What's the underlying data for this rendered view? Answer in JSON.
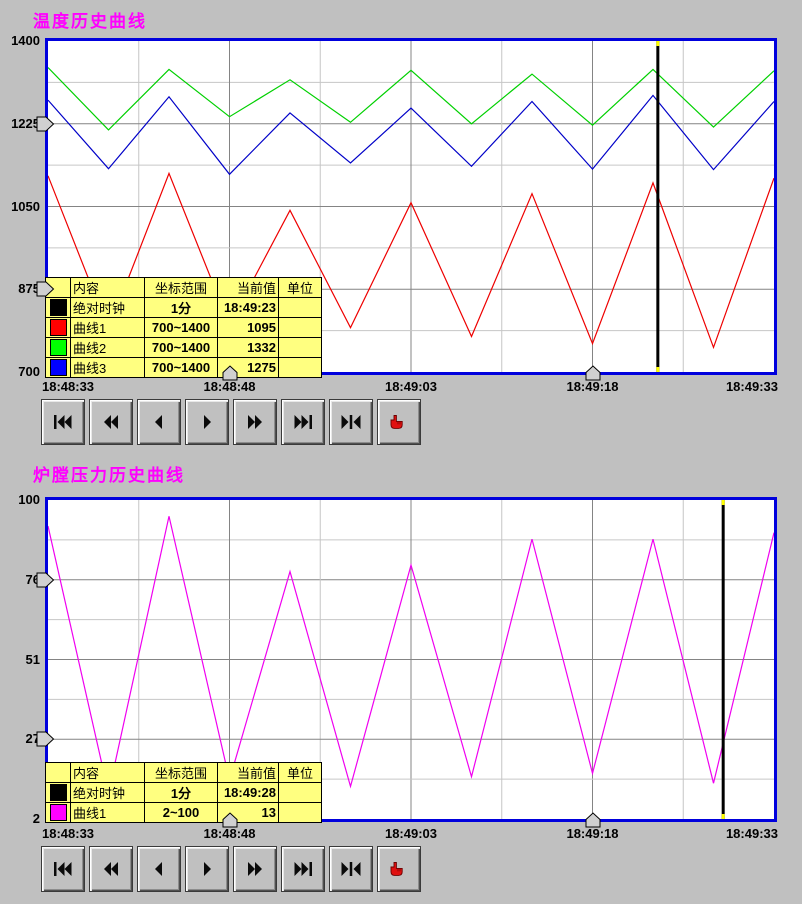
{
  "colors": {
    "background": "#c0c0c0",
    "plot_border": "#0000dd",
    "grid_major": "#848484",
    "grid_minor": "#c6c6c6",
    "legend_background": "#ffff80",
    "title_text": "#ff00ff",
    "cursor_line": "#000000",
    "cursor_end_tick": "#ffff00",
    "marker_fill": "#d0d0d0"
  },
  "transport_buttons": [
    {
      "name": "skip-to-start-button",
      "icon": "skip-to-start-icon"
    },
    {
      "name": "rewind-button",
      "icon": "rewind-icon"
    },
    {
      "name": "step-back-button",
      "icon": "step-back-icon"
    },
    {
      "name": "play-forward-button",
      "icon": "play-forward-icon"
    },
    {
      "name": "fast-forward-button",
      "icon": "fast-forward-icon"
    },
    {
      "name": "skip-to-end-button",
      "icon": "skip-to-end-icon"
    },
    {
      "name": "seek-to-cursor-button",
      "icon": "seek-to-cursor-icon"
    },
    {
      "name": "hand-select-button",
      "icon": "hand-pointer-icon"
    }
  ],
  "panels": [
    {
      "title": "温度历史曲线",
      "y_tick_labels": [
        "1400",
        "1225",
        "1050",
        "875",
        "700"
      ],
      "x_tick_labels": [
        "18:48:33",
        "18:48:48",
        "18:49:03",
        "18:49:18",
        "18:49:33"
      ],
      "legend": {
        "headers": [
          "内容",
          "坐标范围",
          "当前值",
          "单位"
        ],
        "rows": [
          {
            "swatch": "#000000",
            "content": "绝对时钟",
            "range": "1分",
            "value": "18:49:23",
            "unit": ""
          },
          {
            "swatch": "#ff0000",
            "content": "曲线1",
            "range": "700~1400",
            "value": "1095",
            "unit": ""
          },
          {
            "swatch": "#00ff00",
            "content": "曲线2",
            "range": "700~1400",
            "value": "1332",
            "unit": ""
          },
          {
            "swatch": "#0000ff",
            "content": "曲线3",
            "range": "700~1400",
            "value": "1275",
            "unit": ""
          }
        ]
      },
      "chart_data": {
        "type": "line",
        "title": "温度历史曲线",
        "x_unit": "seconds after 18:48:33",
        "xlim": [
          0,
          60
        ],
        "ylim": [
          700,
          1400
        ],
        "y_ticks": [
          1400,
          1225,
          1050,
          875,
          700
        ],
        "x_ticks_s": [
          0,
          15,
          30,
          45,
          60
        ],
        "grid": "major and minor gridlines on both axes",
        "legend_position": "yellow table overlay, bottom-left",
        "cursor_time_s": 50.4,
        "series": [
          {
            "name": "曲线1",
            "color": "#ee0000",
            "points": [
              [
                0,
                1115
              ],
              [
                5,
                790
              ],
              [
                10,
                1120
              ],
              [
                15,
                800
              ],
              [
                20,
                1042
              ],
              [
                25,
                794
              ],
              [
                30,
                1058
              ],
              [
                35,
                775
              ],
              [
                40,
                1077
              ],
              [
                45,
                760
              ],
              [
                50,
                1100
              ],
              [
                55,
                752
              ],
              [
                60,
                1110
              ]
            ]
          },
          {
            "name": "曲线2",
            "color": "#00d000",
            "points": [
              [
                0,
                1344
              ],
              [
                5,
                1212
              ],
              [
                10,
                1340
              ],
              [
                15,
                1240
              ],
              [
                20,
                1318
              ],
              [
                25,
                1228
              ],
              [
                30,
                1338
              ],
              [
                35,
                1225
              ],
              [
                40,
                1330
              ],
              [
                45,
                1222
              ],
              [
                50,
                1340
              ],
              [
                55,
                1218
              ],
              [
                60,
                1337
              ]
            ]
          },
          {
            "name": "曲线3",
            "color": "#0000c8",
            "points": [
              [
                0,
                1275
              ],
              [
                5,
                1130
              ],
              [
                10,
                1282
              ],
              [
                15,
                1118
              ],
              [
                20,
                1248
              ],
              [
                25,
                1142
              ],
              [
                30,
                1258
              ],
              [
                35,
                1135
              ],
              [
                40,
                1272
              ],
              [
                45,
                1129
              ],
              [
                50,
                1285
              ],
              [
                55,
                1128
              ],
              [
                60,
                1272
              ]
            ]
          }
        ]
      }
    },
    {
      "title": "炉膛压力历史曲线",
      "y_tick_labels": [
        "100",
        "76",
        "51",
        "27",
        "2"
      ],
      "x_tick_labels": [
        "18:48:33",
        "18:48:48",
        "18:49:03",
        "18:49:18",
        "18:49:33"
      ],
      "legend": {
        "headers": [
          "内容",
          "坐标范围",
          "当前值",
          "单位"
        ],
        "rows": [
          {
            "swatch": "#000000",
            "content": "绝对时钟",
            "range": "1分",
            "value": "18:49:28",
            "unit": ""
          },
          {
            "swatch": "#ff00ff",
            "content": "曲线1",
            "range": "2~100",
            "value": "13",
            "unit": ""
          }
        ]
      },
      "chart_data": {
        "type": "line",
        "title": "炉膛压力历史曲线",
        "x_unit": "seconds after 18:48:33",
        "xlim": [
          0,
          60
        ],
        "ylim": [
          2,
          100
        ],
        "y_ticks": [
          100,
          76,
          51,
          27,
          2
        ],
        "x_ticks_s": [
          0,
          15,
          30,
          45,
          60
        ],
        "grid": "major and minor gridlines on both axes",
        "legend_position": "yellow table overlay, bottom-left",
        "cursor_time_s": 55.8,
        "series": [
          {
            "name": "曲线1",
            "color": "#f000f0",
            "points": [
              [
                0,
                92
              ],
              [
                5,
                10
              ],
              [
                10,
                95
              ],
              [
                15,
                14
              ],
              [
                20,
                78
              ],
              [
                25,
                12
              ],
              [
                30,
                80
              ],
              [
                35,
                15
              ],
              [
                40,
                88
              ],
              [
                45,
                16
              ],
              [
                50,
                88
              ],
              [
                55,
                13
              ],
              [
                60,
                90
              ]
            ]
          }
        ]
      }
    }
  ]
}
